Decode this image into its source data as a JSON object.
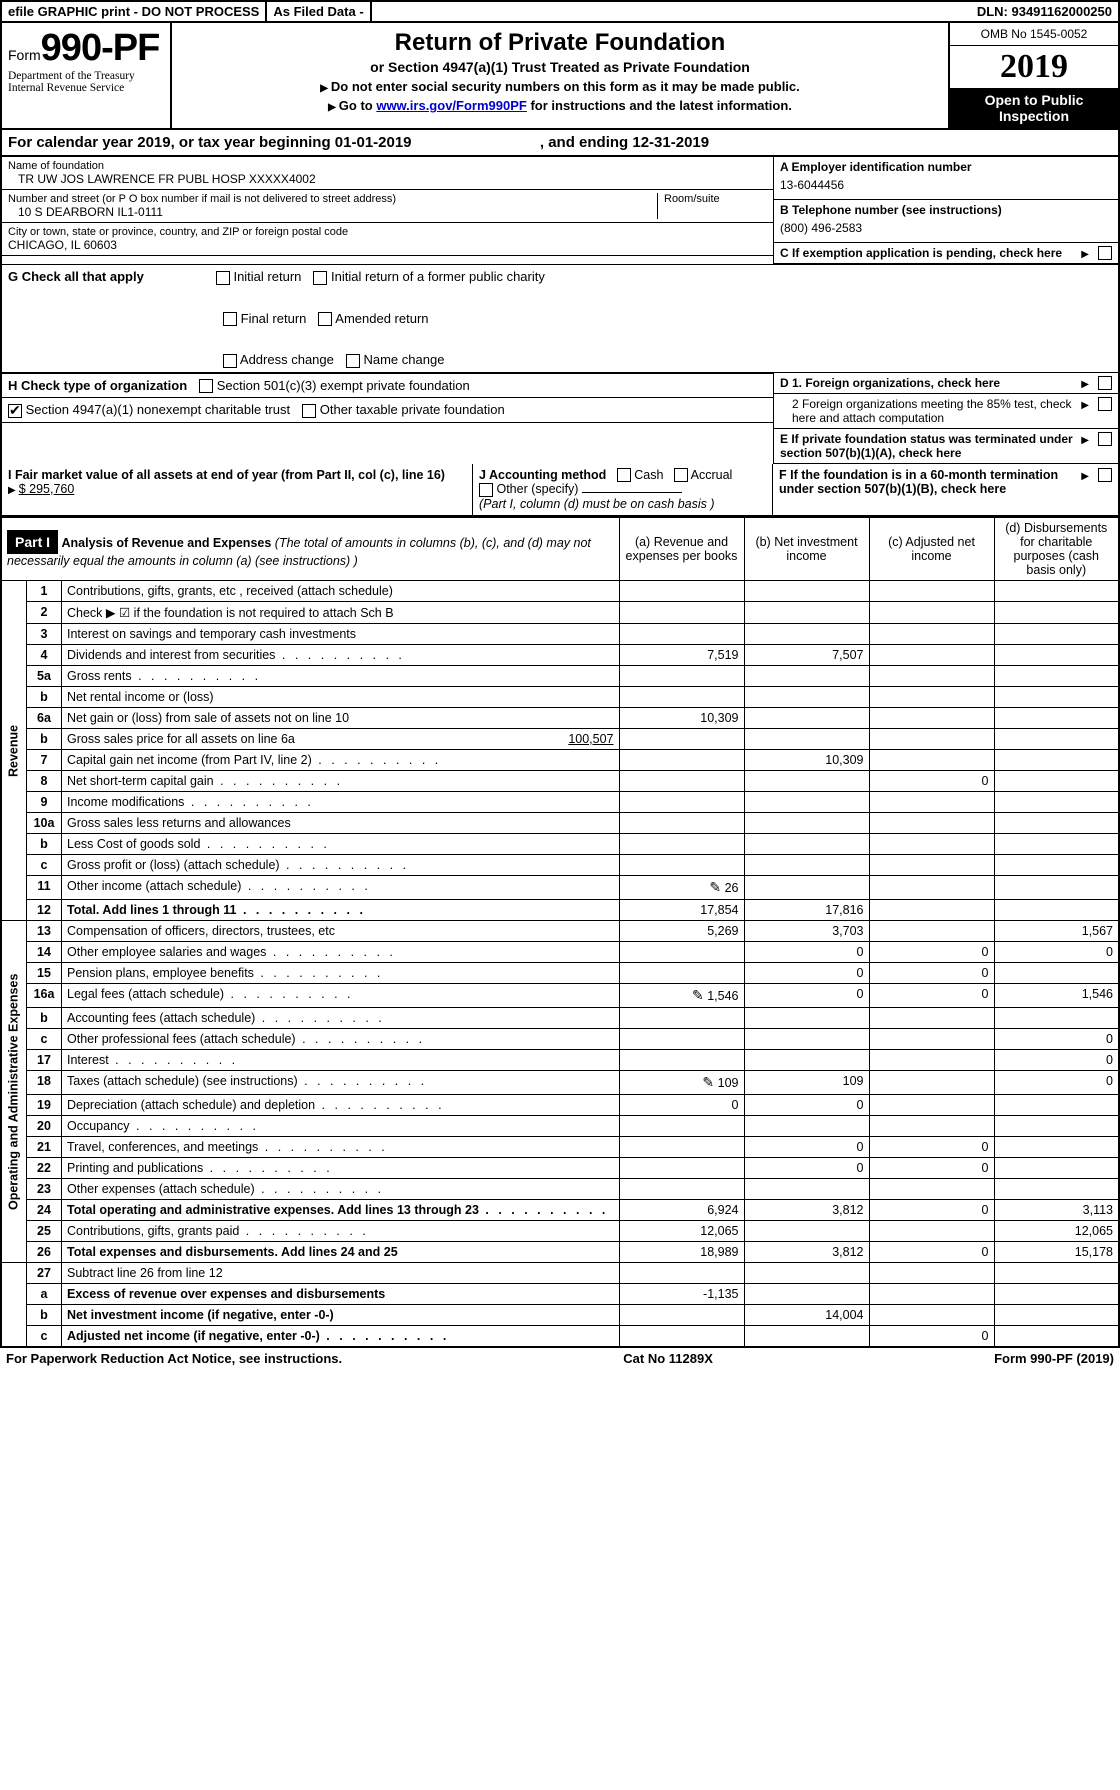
{
  "topbar": {
    "efile": "efile GRAPHIC print - DO NOT PROCESS",
    "asfiled": "As Filed Data -",
    "dln": "DLN: 93491162000250"
  },
  "header": {
    "form_prefix": "Form",
    "form_number": "990-PF",
    "dept": "Department of the Treasury",
    "irs": "Internal Revenue Service",
    "title": "Return of Private Foundation",
    "subtitle": "or Section 4947(a)(1) Trust Treated as Private Foundation",
    "instr1": "Do not enter social security numbers on this form as it may be made public.",
    "instr2_pre": "Go to ",
    "instr2_link": "www.irs.gov/Form990PF",
    "instr2_post": " for instructions and the latest information.",
    "omb": "OMB No 1545-0052",
    "year": "2019",
    "open": "Open to Public Inspection"
  },
  "cal": {
    "line_a": "For calendar year 2019, or tax year beginning 01-01-2019",
    "line_b": ", and ending 12-31-2019"
  },
  "name": {
    "lbl": "Name of foundation",
    "val": "TR UW JOS LAWRENCE FR PUBL HOSP XXXXX4002"
  },
  "addr": {
    "lbl": "Number and street (or P O  box number if mail is not delivered to street address)",
    "room": "Room/suite",
    "val": "10 S DEARBORN IL1-0111"
  },
  "city": {
    "lbl": "City or town, state or province, country, and ZIP or foreign postal code",
    "val": "CHICAGO, IL  60603"
  },
  "right": {
    "a_lbl": "A Employer identification number",
    "a_val": "13-6044456",
    "b_lbl": "B Telephone number (see instructions)",
    "b_val": "(800) 496-2583",
    "c_lbl": "C If exemption application is pending, check here",
    "d1": "D 1. Foreign organizations, check here",
    "d2": "2  Foreign organizations meeting the 85% test, check here and attach computation",
    "e": "E  If private foundation status was terminated under section 507(b)(1)(A), check here",
    "f": "F  If the foundation is in a 60-month termination under section 507(b)(1)(B), check here"
  },
  "g": {
    "lbl": "G Check all that apply",
    "opts": [
      "Initial return",
      "Initial return of a former public charity",
      "Final return",
      "Amended return",
      "Address change",
      "Name change"
    ]
  },
  "h": {
    "lbl": "H Check type of organization",
    "o1": "Section 501(c)(3) exempt private foundation",
    "o2": "Section 4947(a)(1) nonexempt charitable trust",
    "o3": "Other taxable private foundation"
  },
  "i": {
    "lbl": "I Fair market value of all assets at end of year (from Part II, col  (c), line 16)",
    "val": "$  295,760"
  },
  "j": {
    "lbl": "J Accounting method",
    "cash": "Cash",
    "accrual": "Accrual",
    "other": "Other (specify)",
    "note": "(Part I, column (d) must be on cash basis )"
  },
  "part1_hdr": {
    "part": "Part I",
    "title": "Analysis of Revenue and Expenses",
    "note": "(The total of amounts in columns (b), (c), and (d) may not necessarily equal the amounts in column (a) (see instructions) )",
    "cols": {
      "a": "(a)  Revenue and expenses per books",
      "b": "(b)  Net investment income",
      "c": "(c)  Adjusted net income",
      "d": "(d)  Disbursements for charitable purposes (cash basis only)"
    }
  },
  "side_rev": "Revenue",
  "side_exp": "Operating and Administrative Expenses",
  "rows": [
    {
      "n": "1",
      "d": "Contributions, gifts, grants, etc , received (attach schedule)",
      "a": "",
      "b": "",
      "c": "",
      "dd": ""
    },
    {
      "n": "2",
      "d": "Check ▶ ☑ if the foundation is not required to attach Sch  B",
      "a": "",
      "b": "",
      "c": "",
      "dd": ""
    },
    {
      "n": "3",
      "d": "Interest on savings and temporary cash investments",
      "a": "",
      "b": "",
      "c": "",
      "dd": ""
    },
    {
      "n": "4",
      "d": "Dividends and interest from securities",
      "a": "7,519",
      "b": "7,507",
      "c": "",
      "dd": "",
      "dots": 1
    },
    {
      "n": "5a",
      "d": "Gross rents",
      "a": "",
      "b": "",
      "c": "",
      "dd": "",
      "dots": 1
    },
    {
      "n": "b",
      "d": "Net rental income or (loss)",
      "a": "",
      "b": "",
      "c": "",
      "dd": ""
    },
    {
      "n": "6a",
      "d": "Net gain or (loss) from sale of assets not on line 10",
      "a": "10,309",
      "b": "",
      "c": "",
      "dd": ""
    },
    {
      "n": "b",
      "d": "Gross sales price for all assets on line 6a",
      "extra": "100,507",
      "a": "",
      "b": "",
      "c": "",
      "dd": ""
    },
    {
      "n": "7",
      "d": "Capital gain net income (from Part IV, line 2)",
      "a": "",
      "b": "10,309",
      "c": "",
      "dd": "",
      "dots": 1
    },
    {
      "n": "8",
      "d": "Net short-term capital gain",
      "a": "",
      "b": "",
      "c": "0",
      "dd": "",
      "dots": 1
    },
    {
      "n": "9",
      "d": "Income modifications",
      "a": "",
      "b": "",
      "c": "",
      "dd": "",
      "dots": 1
    },
    {
      "n": "10a",
      "d": "Gross sales less returns and allowances",
      "a": "",
      "b": "",
      "c": "",
      "dd": ""
    },
    {
      "n": "b",
      "d": "Less  Cost of goods sold",
      "a": "",
      "b": "",
      "c": "",
      "dd": "",
      "dots": 1
    },
    {
      "n": "c",
      "d": "Gross profit or (loss) (attach schedule)",
      "a": "",
      "b": "",
      "c": "",
      "dd": "",
      "dots": 1
    },
    {
      "n": "11",
      "d": "Other income (attach schedule)",
      "a": "26",
      "b": "",
      "c": "",
      "dd": "",
      "pen": 1,
      "dots": 1
    },
    {
      "n": "12",
      "d": "Total. Add lines 1 through 11",
      "a": "17,854",
      "b": "17,816",
      "c": "",
      "dd": "",
      "bold": 1,
      "dots": 1
    }
  ],
  "exp_rows": [
    {
      "n": "13",
      "d": "Compensation of officers, directors, trustees, etc",
      "a": "5,269",
      "b": "3,703",
      "c": "",
      "dd": "1,567"
    },
    {
      "n": "14",
      "d": "Other employee salaries and wages",
      "a": "",
      "b": "0",
      "c": "0",
      "dd": "0",
      "dots": 1
    },
    {
      "n": "15",
      "d": "Pension plans, employee benefits",
      "a": "",
      "b": "0",
      "c": "0",
      "dd": "",
      "dots": 1
    },
    {
      "n": "16a",
      "d": "Legal fees (attach schedule)",
      "a": "1,546",
      "b": "0",
      "c": "0",
      "dd": "1,546",
      "pen": 1,
      "dots": 1
    },
    {
      "n": "b",
      "d": "Accounting fees (attach schedule)",
      "a": "",
      "b": "",
      "c": "",
      "dd": "",
      "dots": 1
    },
    {
      "n": "c",
      "d": "Other professional fees (attach schedule)",
      "a": "",
      "b": "",
      "c": "",
      "dd": "0",
      "dots": 1
    },
    {
      "n": "17",
      "d": "Interest",
      "a": "",
      "b": "",
      "c": "",
      "dd": "0",
      "dots": 1
    },
    {
      "n": "18",
      "d": "Taxes (attach schedule) (see instructions)",
      "a": "109",
      "b": "109",
      "c": "",
      "dd": "0",
      "pen": 1,
      "dots": 1
    },
    {
      "n": "19",
      "d": "Depreciation (attach schedule) and depletion",
      "a": "0",
      "b": "0",
      "c": "",
      "dd": "",
      "dots": 1
    },
    {
      "n": "20",
      "d": "Occupancy",
      "a": "",
      "b": "",
      "c": "",
      "dd": "",
      "dots": 1
    },
    {
      "n": "21",
      "d": "Travel, conferences, and meetings",
      "a": "",
      "b": "0",
      "c": "0",
      "dd": "",
      "dots": 1
    },
    {
      "n": "22",
      "d": "Printing and publications",
      "a": "",
      "b": "0",
      "c": "0",
      "dd": "",
      "dots": 1
    },
    {
      "n": "23",
      "d": "Other expenses (attach schedule)",
      "a": "",
      "b": "",
      "c": "",
      "dd": "",
      "dots": 1
    },
    {
      "n": "24",
      "d": "Total operating and administrative expenses. Add lines 13 through 23",
      "a": "6,924",
      "b": "3,812",
      "c": "0",
      "dd": "3,113",
      "bold": 1,
      "dots": 1
    },
    {
      "n": "25",
      "d": "Contributions, gifts, grants paid",
      "a": "12,065",
      "b": "",
      "c": "",
      "dd": "12,065",
      "dots": 1
    },
    {
      "n": "26",
      "d": "Total expenses and disbursements. Add lines 24 and 25",
      "a": "18,989",
      "b": "3,812",
      "c": "0",
      "dd": "15,178",
      "bold": 1
    }
  ],
  "bot_rows": [
    {
      "n": "27",
      "d": "Subtract line 26 from line 12",
      "a": "",
      "b": "",
      "c": "",
      "dd": ""
    },
    {
      "n": "a",
      "d": "Excess of revenue over expenses and disbursements",
      "a": "-1,135",
      "b": "",
      "c": "",
      "dd": "",
      "bold": 1
    },
    {
      "n": "b",
      "d": "Net investment income (if negative, enter -0-)",
      "a": "",
      "b": "14,004",
      "c": "",
      "dd": "",
      "bold": 1
    },
    {
      "n": "c",
      "d": "Adjusted net income (if negative, enter -0-)",
      "a": "",
      "b": "",
      "c": "0",
      "dd": "",
      "bold": 1,
      "dots": 1
    }
  ],
  "footer": {
    "pra": "For Paperwork Reduction Act Notice, see instructions.",
    "cat": "Cat  No  11289X",
    "form": "Form 990-PF (2019)"
  }
}
